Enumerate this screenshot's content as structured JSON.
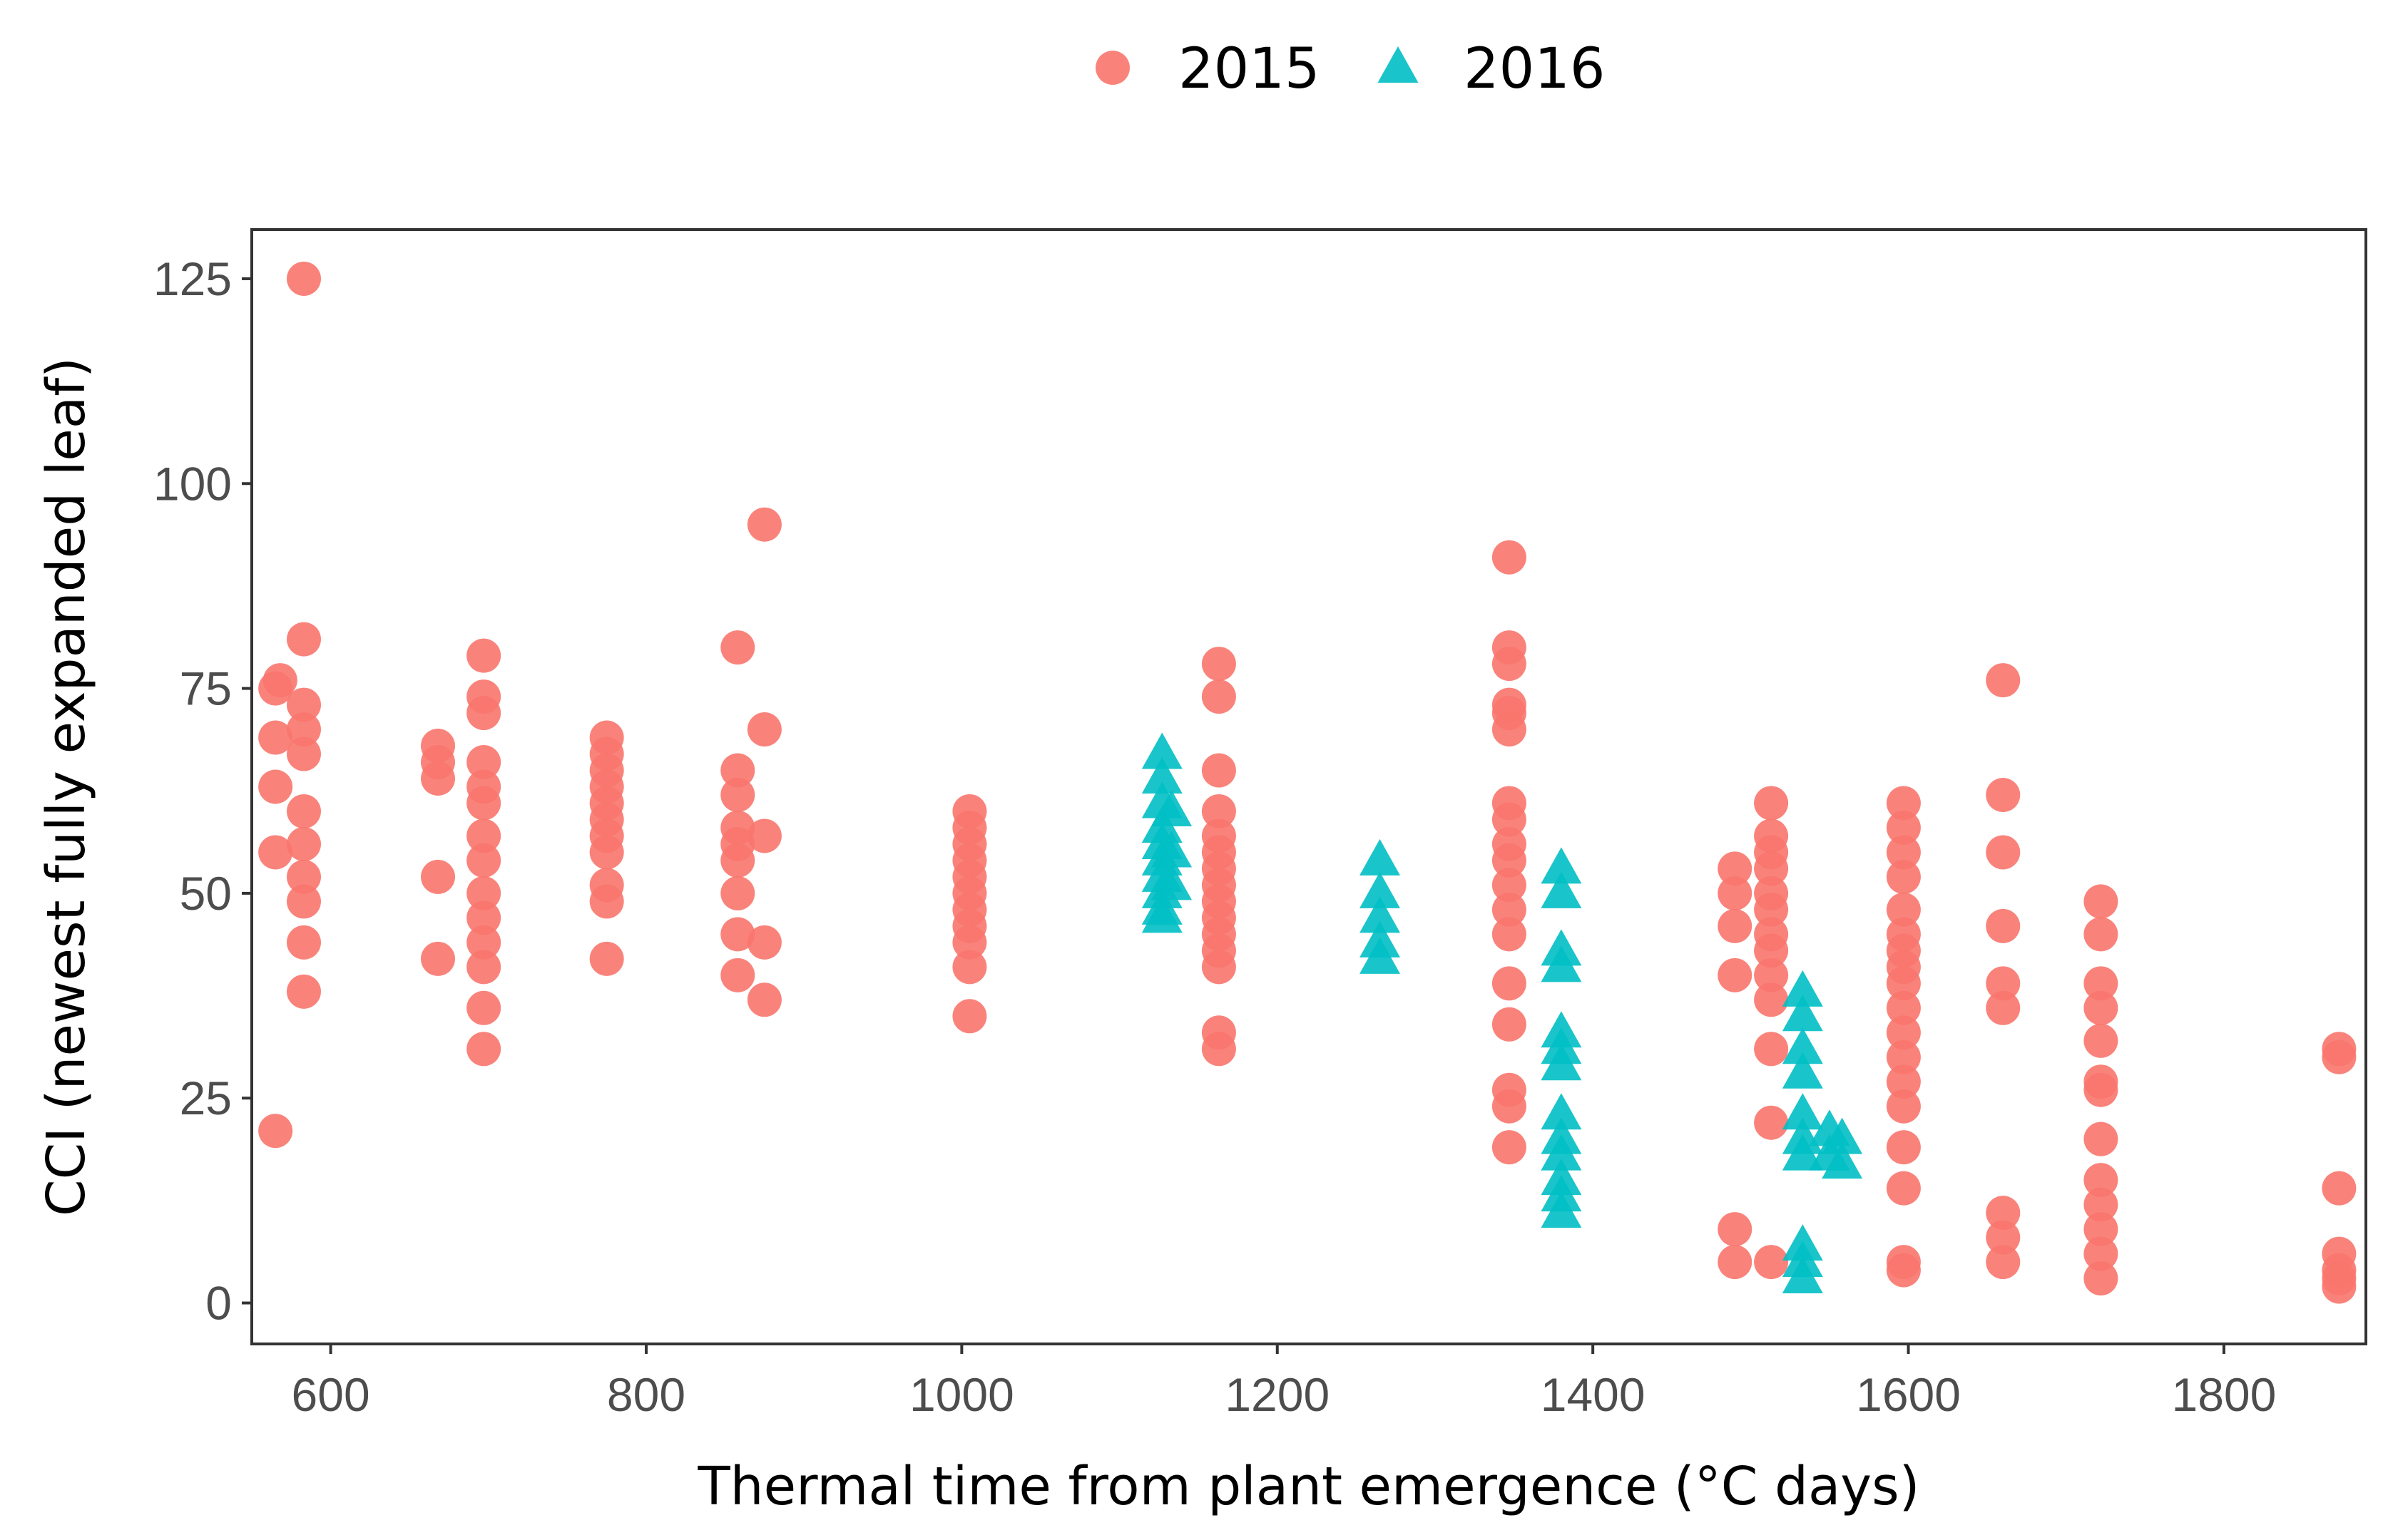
{
  "chart_data": {
    "type": "scatter",
    "title": "",
    "xlabel": "Thermal time from plant emergence (°C days)",
    "ylabel": "CCI (newest fully expanded leaf)",
    "xlim": [
      550,
      1890
    ],
    "ylim": [
      -5,
      131
    ],
    "xticks": [
      600,
      800,
      1000,
      1200,
      1400,
      1600,
      1800
    ],
    "yticks": [
      0,
      25,
      50,
      75,
      100,
      125
    ],
    "grid": false,
    "legend_position": "top-center",
    "series": [
      {
        "name": "2015",
        "marker": "circle",
        "color": "#F8766D",
        "points": [
          [
            565,
            21
          ],
          [
            565,
            55
          ],
          [
            565,
            63
          ],
          [
            565,
            69
          ],
          [
            565,
            75
          ],
          [
            568,
            76
          ],
          [
            583,
            125
          ],
          [
            583,
            81
          ],
          [
            583,
            73
          ],
          [
            583,
            70
          ],
          [
            583,
            67
          ],
          [
            583,
            60
          ],
          [
            583,
            56
          ],
          [
            583,
            52
          ],
          [
            583,
            49
          ],
          [
            583,
            44
          ],
          [
            583,
            38
          ],
          [
            668,
            68
          ],
          [
            668,
            66
          ],
          [
            668,
            64
          ],
          [
            668,
            52
          ],
          [
            668,
            42
          ],
          [
            697,
            79
          ],
          [
            697,
            74
          ],
          [
            697,
            72
          ],
          [
            697,
            66
          ],
          [
            697,
            63
          ],
          [
            697,
            61
          ],
          [
            697,
            57
          ],
          [
            697,
            54
          ],
          [
            697,
            50
          ],
          [
            697,
            47
          ],
          [
            697,
            44
          ],
          [
            697,
            41
          ],
          [
            697,
            36
          ],
          [
            697,
            31
          ],
          [
            775,
            69
          ],
          [
            775,
            67
          ],
          [
            775,
            65
          ],
          [
            775,
            63
          ],
          [
            775,
            61
          ],
          [
            775,
            59
          ],
          [
            775,
            57
          ],
          [
            775,
            55
          ],
          [
            775,
            51
          ],
          [
            775,
            49
          ],
          [
            775,
            42
          ],
          [
            858,
            80
          ],
          [
            858,
            65
          ],
          [
            858,
            62
          ],
          [
            858,
            58
          ],
          [
            858,
            56
          ],
          [
            858,
            54
          ],
          [
            858,
            50
          ],
          [
            858,
            45
          ],
          [
            858,
            40
          ],
          [
            875,
            95
          ],
          [
            875,
            70
          ],
          [
            875,
            57
          ],
          [
            875,
            44
          ],
          [
            875,
            37
          ],
          [
            1005,
            60
          ],
          [
            1005,
            58
          ],
          [
            1005,
            56
          ],
          [
            1005,
            54
          ],
          [
            1005,
            52
          ],
          [
            1005,
            50
          ],
          [
            1005,
            48
          ],
          [
            1005,
            46
          ],
          [
            1005,
            44
          ],
          [
            1005,
            41
          ],
          [
            1005,
            35
          ],
          [
            1163,
            78
          ],
          [
            1163,
            74
          ],
          [
            1163,
            65
          ],
          [
            1163,
            60
          ],
          [
            1163,
            57
          ],
          [
            1163,
            55
          ],
          [
            1163,
            53
          ],
          [
            1163,
            51
          ],
          [
            1163,
            49
          ],
          [
            1163,
            47
          ],
          [
            1163,
            45
          ],
          [
            1163,
            43
          ],
          [
            1163,
            41
          ],
          [
            1163,
            33
          ],
          [
            1163,
            31
          ],
          [
            1347,
            91
          ],
          [
            1347,
            80
          ],
          [
            1347,
            78
          ],
          [
            1347,
            73
          ],
          [
            1347,
            72
          ],
          [
            1347,
            70
          ],
          [
            1347,
            61
          ],
          [
            1347,
            59
          ],
          [
            1347,
            56
          ],
          [
            1347,
            54
          ],
          [
            1347,
            51
          ],
          [
            1347,
            48
          ],
          [
            1347,
            45
          ],
          [
            1347,
            39
          ],
          [
            1347,
            34
          ],
          [
            1347,
            26
          ],
          [
            1347,
            24
          ],
          [
            1347,
            19
          ],
          [
            1490,
            53
          ],
          [
            1490,
            50
          ],
          [
            1490,
            46
          ],
          [
            1490,
            40
          ],
          [
            1490,
            9
          ],
          [
            1490,
            5
          ],
          [
            1513,
            61
          ],
          [
            1513,
            57
          ],
          [
            1513,
            55
          ],
          [
            1513,
            53
          ],
          [
            1513,
            50
          ],
          [
            1513,
            48
          ],
          [
            1513,
            45
          ],
          [
            1513,
            43
          ],
          [
            1513,
            40
          ],
          [
            1513,
            37
          ],
          [
            1513,
            31
          ],
          [
            1513,
            22
          ],
          [
            1513,
            5
          ],
          [
            1597,
            61
          ],
          [
            1597,
            58
          ],
          [
            1597,
            55
          ],
          [
            1597,
            52
          ],
          [
            1597,
            48
          ],
          [
            1597,
            45
          ],
          [
            1597,
            43
          ],
          [
            1597,
            41
          ],
          [
            1597,
            39
          ],
          [
            1597,
            36
          ],
          [
            1597,
            33
          ],
          [
            1597,
            30
          ],
          [
            1597,
            27
          ],
          [
            1597,
            24
          ],
          [
            1597,
            19
          ],
          [
            1597,
            14
          ],
          [
            1597,
            5
          ],
          [
            1597,
            4
          ],
          [
            1660,
            76
          ],
          [
            1660,
            62
          ],
          [
            1660,
            55
          ],
          [
            1660,
            46
          ],
          [
            1660,
            39
          ],
          [
            1660,
            36
          ],
          [
            1660,
            11
          ],
          [
            1660,
            8
          ],
          [
            1660,
            5
          ],
          [
            1722,
            49
          ],
          [
            1722,
            45
          ],
          [
            1722,
            39
          ],
          [
            1722,
            36
          ],
          [
            1722,
            32
          ],
          [
            1722,
            27
          ],
          [
            1722,
            26
          ],
          [
            1722,
            20
          ],
          [
            1722,
            15
          ],
          [
            1722,
            12
          ],
          [
            1722,
            9
          ],
          [
            1722,
            6
          ],
          [
            1722,
            3
          ],
          [
            1873,
            31
          ],
          [
            1873,
            30
          ],
          [
            1873,
            14
          ],
          [
            1873,
            6
          ],
          [
            1873,
            4
          ],
          [
            1873,
            3
          ],
          [
            1873,
            2
          ]
        ]
      },
      {
        "name": "2016",
        "marker": "triangle",
        "color": "#00BFC4",
        "points": [
          [
            1127,
            67
          ],
          [
            1127,
            64
          ],
          [
            1127,
            61
          ],
          [
            1127,
            58
          ],
          [
            1127,
            56
          ],
          [
            1127,
            54
          ],
          [
            1127,
            52
          ],
          [
            1127,
            50
          ],
          [
            1127,
            48
          ],
          [
            1127,
            47
          ],
          [
            1133,
            60
          ],
          [
            1133,
            55
          ],
          [
            1133,
            51
          ],
          [
            1265,
            54
          ],
          [
            1265,
            50
          ],
          [
            1265,
            47
          ],
          [
            1265,
            44
          ],
          [
            1265,
            42
          ],
          [
            1380,
            53
          ],
          [
            1380,
            50
          ],
          [
            1380,
            43
          ],
          [
            1380,
            41
          ],
          [
            1380,
            33
          ],
          [
            1380,
            31
          ],
          [
            1380,
            29
          ],
          [
            1380,
            23
          ],
          [
            1380,
            20
          ],
          [
            1380,
            18
          ],
          [
            1380,
            15
          ],
          [
            1380,
            13
          ],
          [
            1380,
            11
          ],
          [
            1533,
            38
          ],
          [
            1533,
            35
          ],
          [
            1533,
            31
          ],
          [
            1533,
            28
          ],
          [
            1533,
            23
          ],
          [
            1533,
            20
          ],
          [
            1533,
            18
          ],
          [
            1533,
            7
          ],
          [
            1533,
            5
          ],
          [
            1533,
            3
          ],
          [
            1550,
            21
          ],
          [
            1550,
            18
          ],
          [
            1558,
            20
          ],
          [
            1558,
            17
          ]
        ]
      }
    ]
  }
}
